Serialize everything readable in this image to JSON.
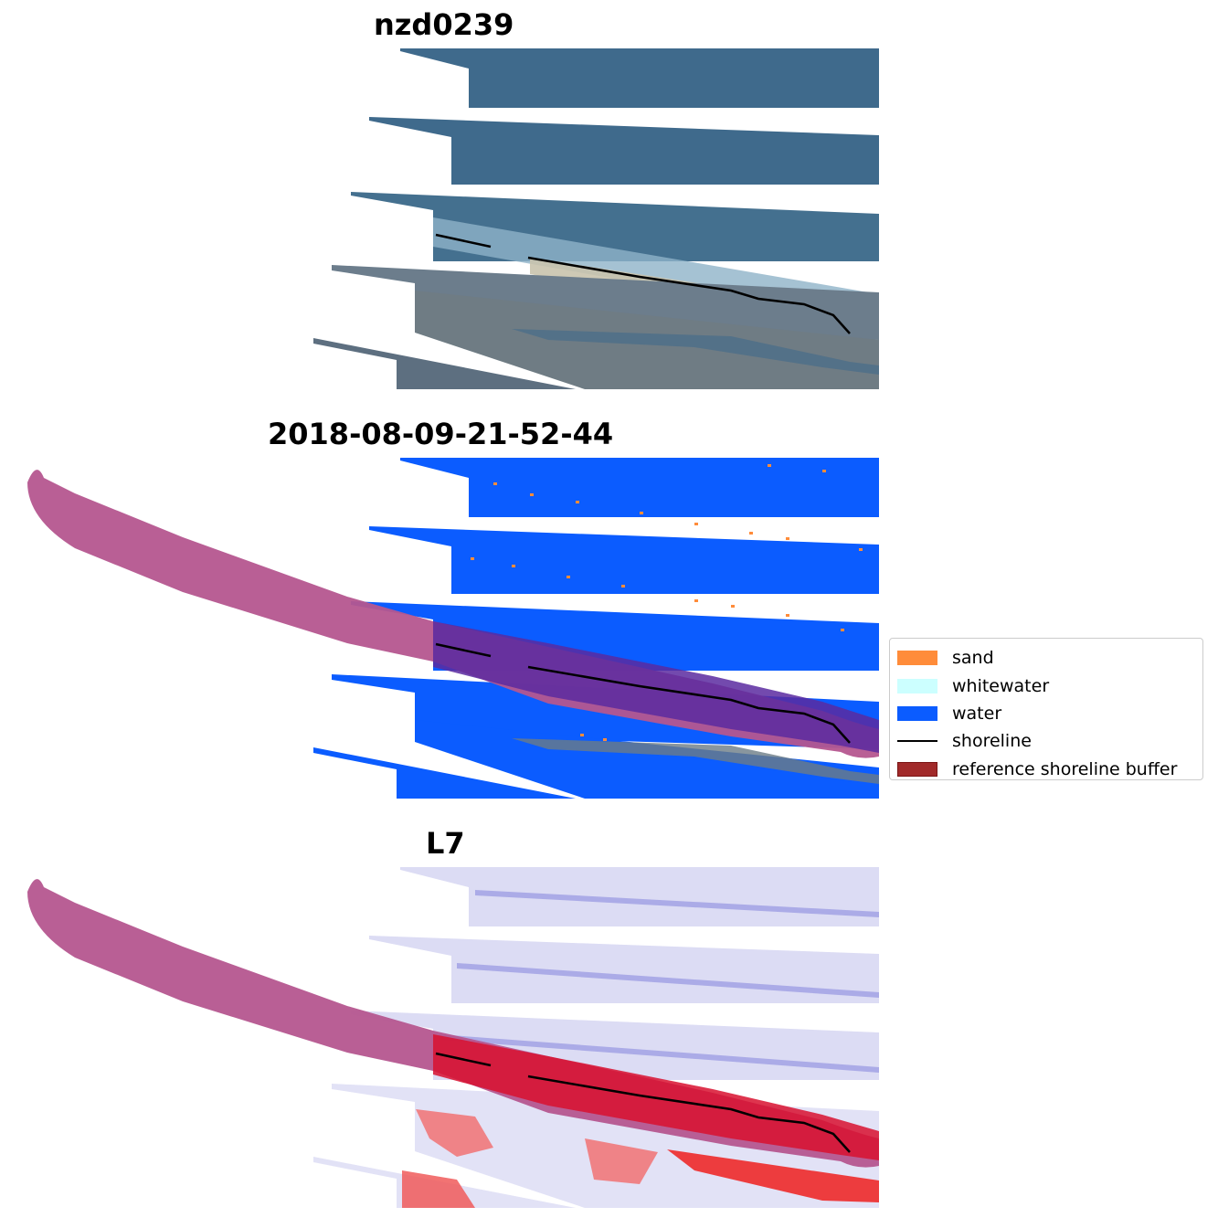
{
  "panels": [
    {
      "title": "nzd0239",
      "kind": "rgb"
    },
    {
      "title": "2018-08-09-21-52-44",
      "kind": "classified"
    },
    {
      "title": "L7",
      "kind": "index"
    }
  ],
  "legend": {
    "items": [
      {
        "label": "sand",
        "color": "#ff8c3a",
        "type": "patch"
      },
      {
        "label": "whitewater",
        "color": "#ccffff",
        "type": "patch"
      },
      {
        "label": "water",
        "color": "#0b5cff",
        "type": "patch"
      },
      {
        "label": "shoreline",
        "color": "#000000",
        "type": "line"
      },
      {
        "label": "reference shoreline buffer",
        "color": "#a12a2a",
        "type": "patch"
      }
    ]
  },
  "colors": {
    "rgb_water": "#3f6a8c",
    "rgb_surf": "#9fbccf",
    "rgb_land": "#6f7f8f",
    "class_water": "#0b5cff",
    "buffer": "#b5568f",
    "buffer_overlap": "#5a2aa0",
    "index_bg": "#dcdcf4",
    "index_red": "#d8102f",
    "shoreline": "#000000"
  }
}
